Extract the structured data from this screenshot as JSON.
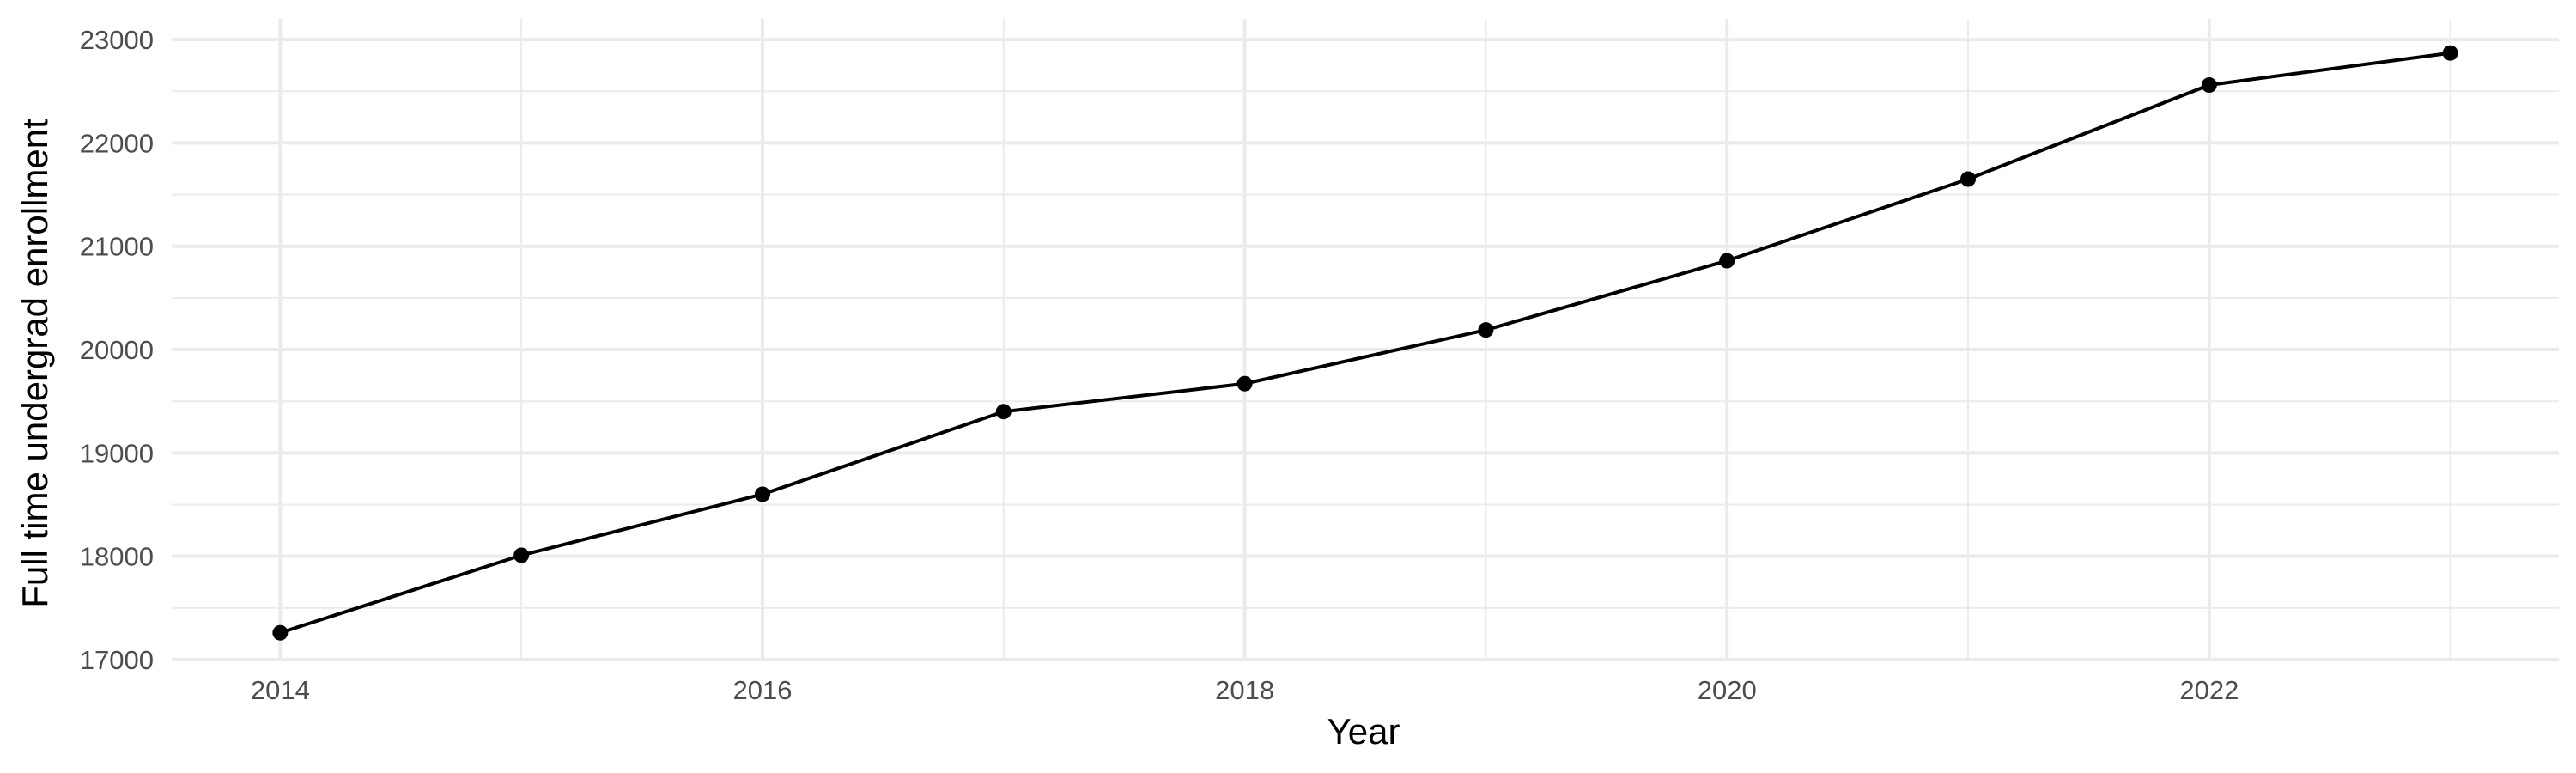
{
  "chart_data": {
    "type": "line",
    "title": "",
    "xlabel": "Year",
    "ylabel": "Full time undergrad enrollment",
    "x": [
      2014,
      2015,
      2016,
      2017,
      2018,
      2019,
      2020,
      2021,
      2022,
      2023
    ],
    "series": [
      {
        "values": [
          17260,
          18010,
          18600,
          19400,
          19670,
          20190,
          20860,
          21650,
          22560,
          22870
        ]
      }
    ],
    "xlim": [
      2013.55,
      2023.45
    ],
    "ylim": [
      17000,
      23200
    ],
    "x_ticks": [
      2014,
      2016,
      2018,
      2020,
      2022
    ],
    "x_tick_labels": [
      "2014",
      "2016",
      "2018",
      "2020",
      "2022"
    ],
    "y_ticks": [
      17000,
      18000,
      19000,
      20000,
      21000,
      22000,
      23000
    ],
    "y_tick_labels": [
      "17000",
      "18000",
      "19000",
      "20000",
      "21000",
      "22000",
      "23000"
    ],
    "grid": true,
    "legend": "none",
    "line_color": "#000000",
    "point_color": "#000000"
  }
}
